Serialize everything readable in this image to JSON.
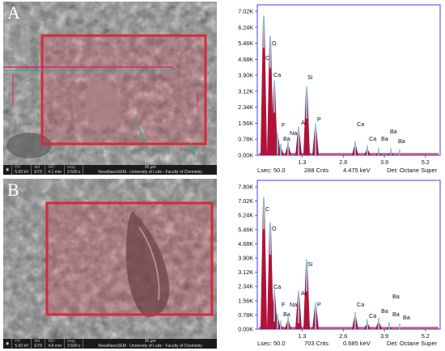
{
  "panels": [
    {
      "letter": "A",
      "sem_bar": {
        "hv_label": "HV",
        "hv": "5.00 kV",
        "det_label": "det",
        "det": "ETD",
        "wd_label": "WD",
        "wd": "4.1 mm",
        "mag_label": "mag",
        "mag": "3 500 x",
        "scale": "30 µm",
        "credit": "NovaNanoSEM - University of Lodz - Faculty of Chemistry"
      },
      "spectrum": {
        "y_ticks": [
          "7.02K",
          "6.24K",
          "5.46K",
          "4.68K",
          "3.90K",
          "3.12K",
          "2.34K",
          "1.56K",
          "0.78K",
          "0.00K"
        ],
        "x_ticks": [
          "1.3",
          "2.6",
          "3.9",
          "5.2"
        ],
        "peak_labels": [
          "C",
          "O",
          "Ca",
          "F",
          "Ba",
          "Na",
          "Al",
          "Si",
          "P",
          "Ca",
          "Ca",
          "Ba",
          "Ba",
          "Ba"
        ],
        "footer": {
          "lsec": "Lsec: 50.0",
          "cnts": "288 Cnts",
          "kev": "4.475 keV",
          "det": "Det: Octane Super"
        }
      }
    },
    {
      "letter": "B",
      "sem_bar": {
        "hv_label": "HV",
        "hv": "5.00 kV",
        "det_label": "det",
        "det": "ETD",
        "wd_label": "WD",
        "wd": "4.8 mm",
        "mag_label": "mag",
        "mag": "3 500 x",
        "scale": "30 µm",
        "credit": "NovaNanoSEM - University of Lodz - Faculty of Chemistry"
      },
      "spectrum": {
        "y_ticks": [
          "7.80K",
          "7.02K",
          "6.24K",
          "5.46K",
          "4.68K",
          "3.90K",
          "3.12K",
          "2.34K",
          "1.56K",
          "0.78K",
          "0.00K"
        ],
        "x_ticks": [
          "1.3",
          "2.6",
          "3.9",
          "5.2"
        ],
        "peak_labels": [
          "C",
          "O",
          "Ca",
          "F",
          "Ba",
          "Na",
          "Al",
          "Si",
          "P",
          "Ca",
          "Ca",
          "Ba",
          "Ba",
          "Ba",
          "Ba"
        ],
        "footer": {
          "lsec": "Lsec: 50.0",
          "cnts": "703 Cnts",
          "kev": "0.685 keV",
          "det": "Det: Octane Super"
        }
      }
    }
  ],
  "colors": {
    "roi_box": "#d62a3a",
    "spectrum_fill": "#b0123a",
    "spectrum_peak_top": "#7fd6f0",
    "axis_frame": "#3c3cff"
  }
}
